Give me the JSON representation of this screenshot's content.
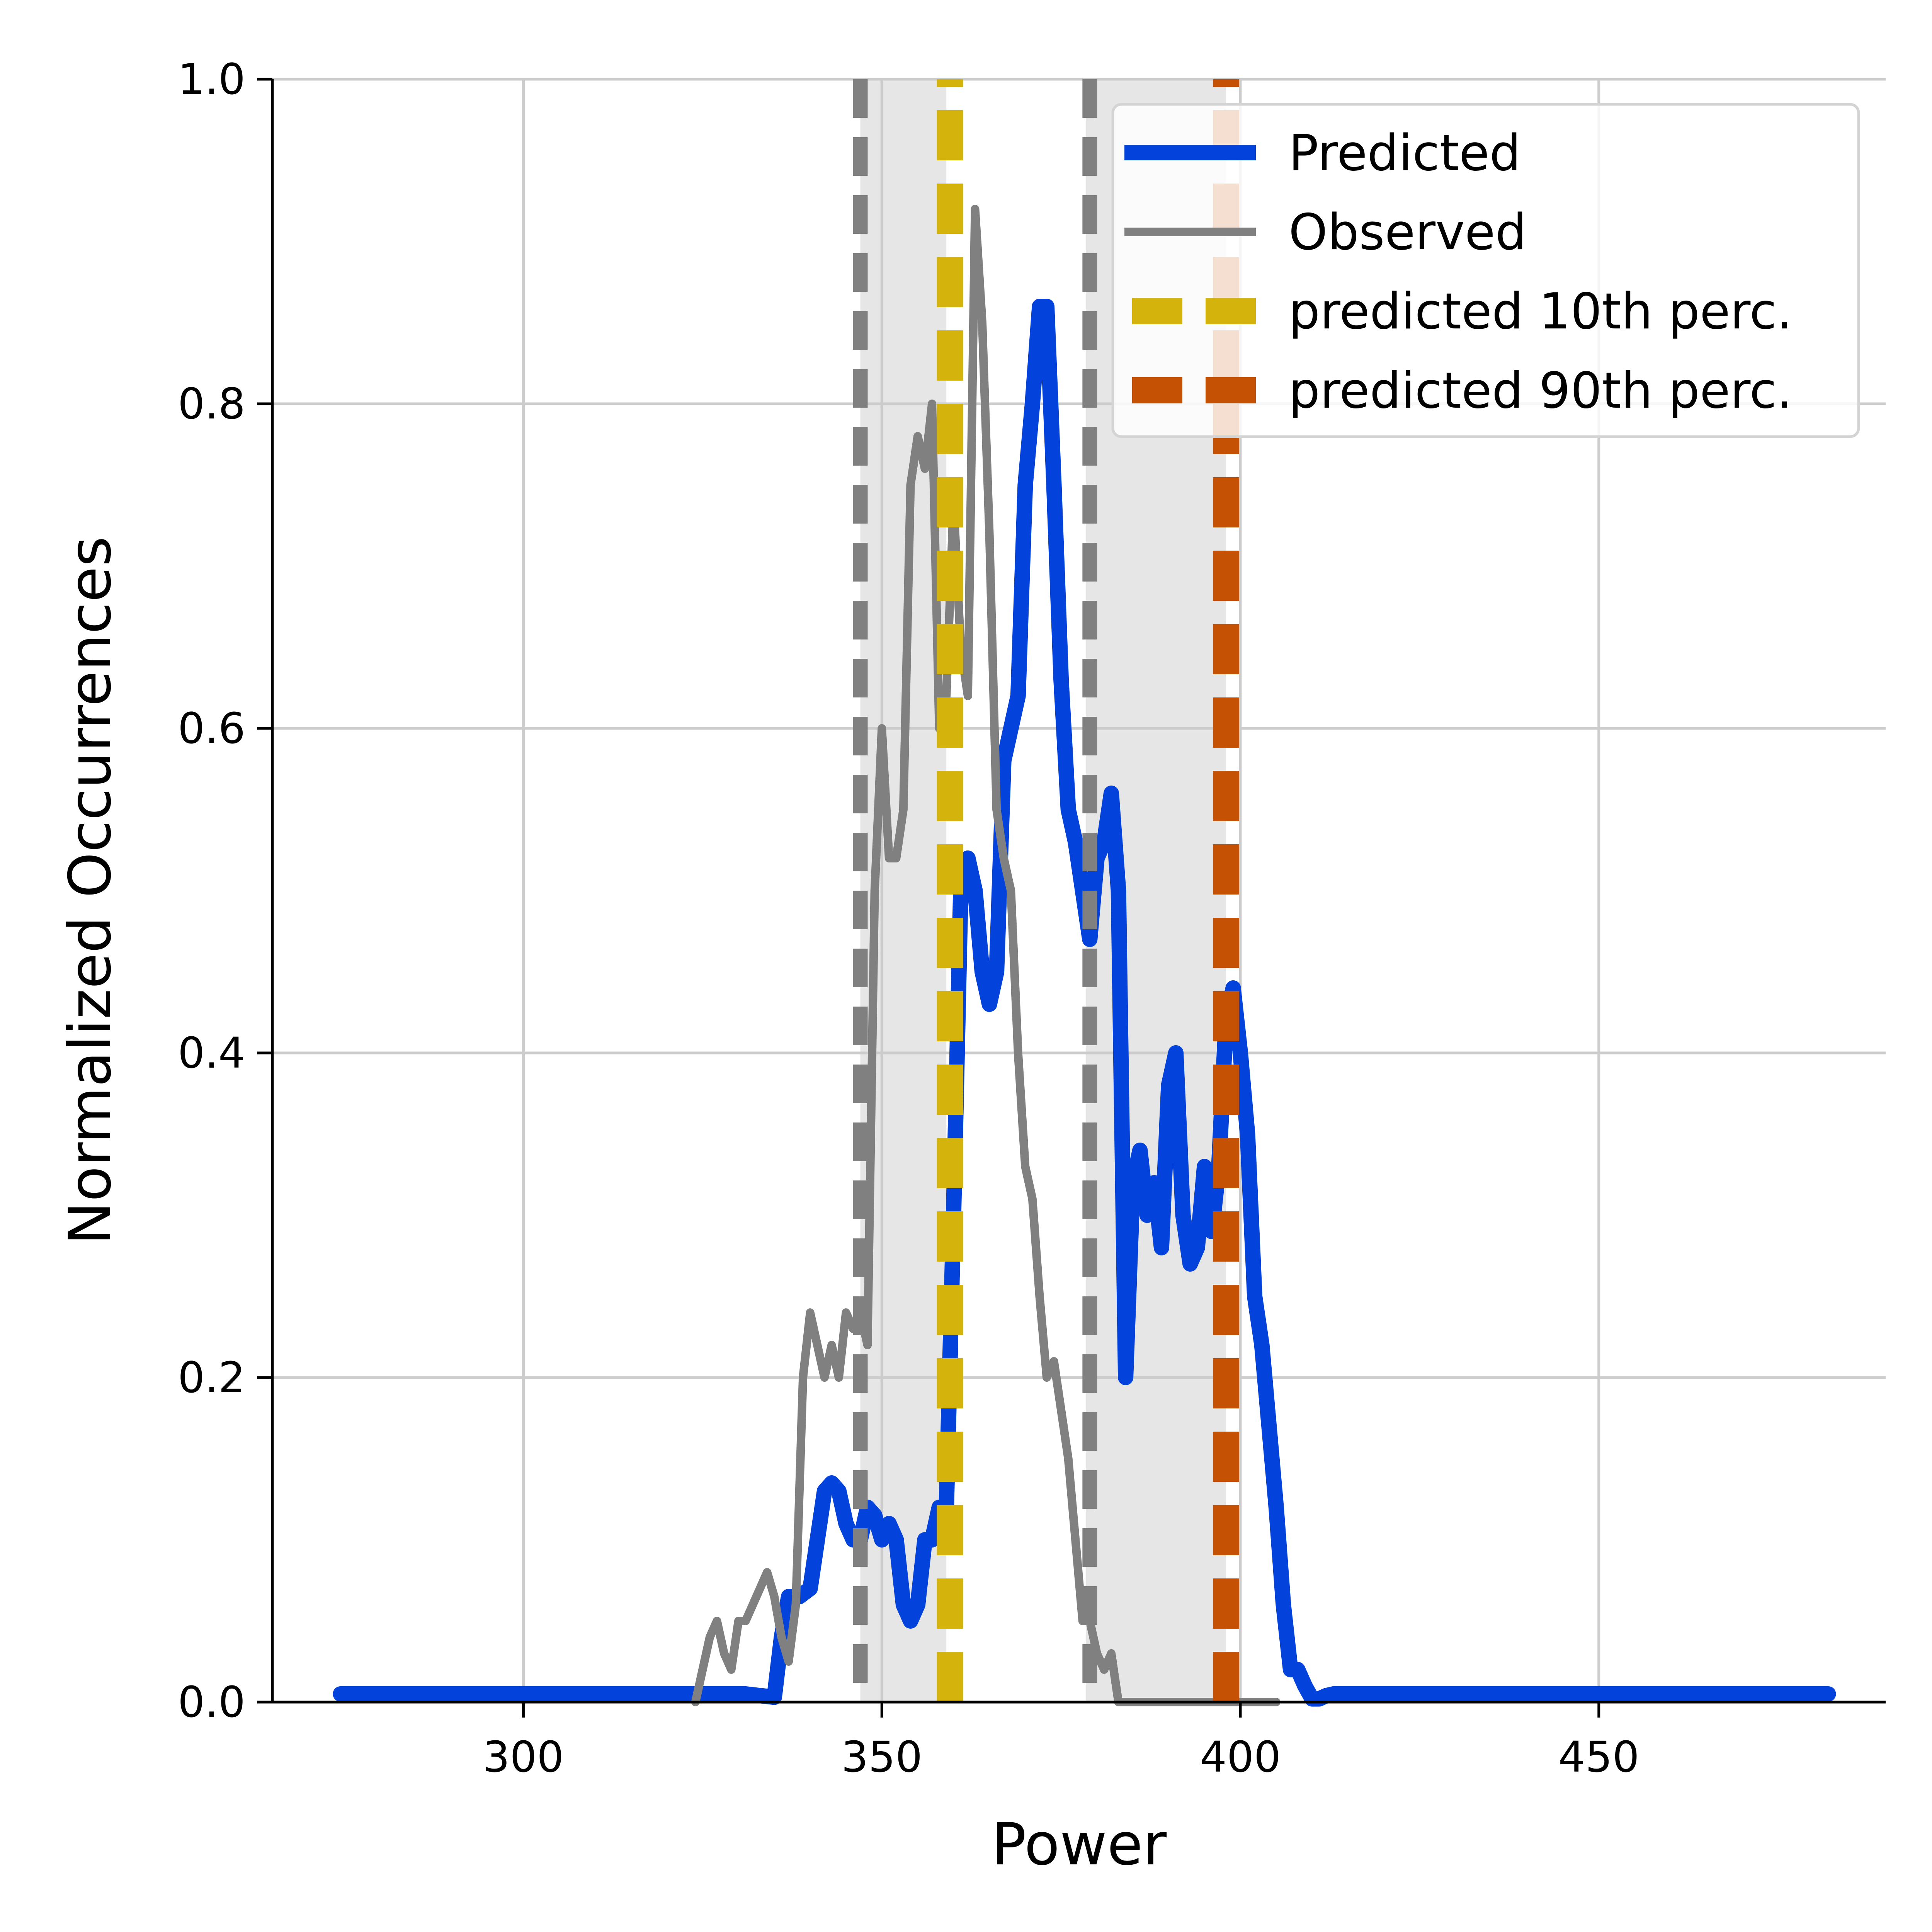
{
  "chart_data": {
    "type": "line",
    "title": "",
    "xlabel": "Power",
    "ylabel": "Normalized Occurrences",
    "xlim": [
      265,
      490
    ],
    "ylim": [
      0.0,
      1.0
    ],
    "grid": true,
    "legend_position": "top-right",
    "x_ticks": [
      300,
      350,
      400,
      450
    ],
    "x_tick_labels": [
      "300",
      "350",
      "400",
      "450"
    ],
    "y_ticks": [
      0.0,
      0.2,
      0.4,
      0.6,
      0.8,
      1.0
    ],
    "y_tick_labels": [
      "0.0",
      "0.2",
      "0.4",
      "0.6",
      "0.8",
      "1.0"
    ],
    "shaded_bands": [
      {
        "x_start": 347,
        "x_end": 359
      },
      {
        "x_start": 378.5,
        "x_end": 398
      }
    ],
    "series": [
      {
        "name": "Predicted",
        "color": "#0443db",
        "x": [
          274.5,
          324,
          331,
          333,
          335,
          336,
          337,
          338.5,
          340,
          341,
          342,
          343,
          344,
          345,
          346,
          347,
          348,
          349,
          350,
          351,
          352,
          353,
          354,
          355,
          356,
          357,
          358,
          359,
          360,
          361,
          362,
          363,
          364,
          365,
          366,
          367,
          368,
          369,
          370,
          371,
          372,
          373,
          374,
          375,
          376,
          377,
          378,
          379,
          380,
          381,
          382,
          383,
          384,
          385,
          386,
          387,
          388,
          389,
          390,
          391,
          392,
          393,
          394,
          395,
          396,
          397,
          398,
          399,
          400,
          401,
          402,
          403,
          404,
          405,
          406,
          407,
          408,
          409,
          410,
          411,
          412,
          413,
          414,
          415,
          417,
          420,
          482
        ],
        "y": [
          0.005,
          0.005,
          0.005,
          0.004,
          0.003,
          0.04,
          0.065,
          0.065,
          0.07,
          0.1,
          0.13,
          0.135,
          0.13,
          0.11,
          0.1,
          0.1,
          0.12,
          0.115,
          0.1,
          0.11,
          0.1,
          0.06,
          0.05,
          0.06,
          0.1,
          0.1,
          0.12,
          0.12,
          0.3,
          0.5,
          0.52,
          0.5,
          0.45,
          0.43,
          0.45,
          0.58,
          0.6,
          0.62,
          0.75,
          0.8,
          0.86,
          0.86,
          0.75,
          0.63,
          0.55,
          0.53,
          0.5,
          0.47,
          0.52,
          0.53,
          0.56,
          0.5,
          0.2,
          0.32,
          0.34,
          0.3,
          0.32,
          0.28,
          0.38,
          0.4,
          0.3,
          0.27,
          0.28,
          0.33,
          0.29,
          0.33,
          0.42,
          0.44,
          0.4,
          0.35,
          0.25,
          0.22,
          0.17,
          0.12,
          0.06,
          0.02,
          0.02,
          0.01,
          0.002,
          0.002,
          0.004,
          0.005,
          0.005,
          0.005,
          0.005,
          0.005,
          0.005
        ]
      },
      {
        "name": "Observed",
        "color": "#808080",
        "x": [
          324,
          326,
          327,
          328,
          329,
          330,
          331,
          332,
          333,
          334,
          335,
          336,
          337,
          338,
          339,
          340,
          341,
          342,
          343,
          344,
          345,
          346,
          347,
          348,
          349,
          350,
          351,
          352,
          353,
          354,
          355,
          356,
          357,
          358,
          359,
          360,
          361,
          362,
          363,
          364,
          365,
          366,
          367,
          368,
          369,
          370,
          371,
          372,
          373,
          374,
          375,
          376,
          377,
          378,
          379,
          380,
          381,
          382,
          383,
          384,
          385,
          386,
          387,
          388,
          389,
          390,
          391,
          392,
          393,
          394,
          395,
          396,
          397,
          398,
          399,
          400,
          401,
          402,
          403,
          404,
          405
        ],
        "y": [
          0.0,
          0.04,
          0.05,
          0.03,
          0.02,
          0.05,
          0.05,
          0.06,
          0.07,
          0.08,
          0.065,
          0.04,
          0.025,
          0.06,
          0.2,
          0.24,
          0.22,
          0.2,
          0.22,
          0.2,
          0.24,
          0.23,
          0.24,
          0.22,
          0.5,
          0.6,
          0.52,
          0.52,
          0.55,
          0.75,
          0.78,
          0.76,
          0.8,
          0.6,
          0.62,
          0.74,
          0.65,
          0.62,
          0.92,
          0.85,
          0.72,
          0.55,
          0.52,
          0.5,
          0.4,
          0.33,
          0.31,
          0.25,
          0.2,
          0.21,
          0.18,
          0.15,
          0.1,
          0.05,
          0.05,
          0.03,
          0.02,
          0.03,
          0.0,
          0.0,
          0.0,
          0.0,
          0.0,
          0.0,
          0.0,
          0.0,
          0.0,
          0.0,
          0.0,
          0.0,
          0.0,
          0.0,
          0.0,
          0.0,
          0.0,
          0.0,
          0.0,
          0.0,
          0.0,
          0.0,
          0.0
        ]
      },
      {
        "name": "predicted 10th perc.",
        "color": "#d4b30c",
        "x": [
          359.5,
          359.5
        ],
        "y": [
          0.0,
          1.0
        ]
      },
      {
        "name": "predicted 90th perc.",
        "color": "#c45104",
        "x": [
          398,
          398
        ],
        "y": [
          0.0,
          1.0
        ]
      }
    ],
    "reference_lines": [
      {
        "x": 347,
        "color": "#808080"
      },
      {
        "x": 379,
        "color": "#808080"
      }
    ]
  }
}
